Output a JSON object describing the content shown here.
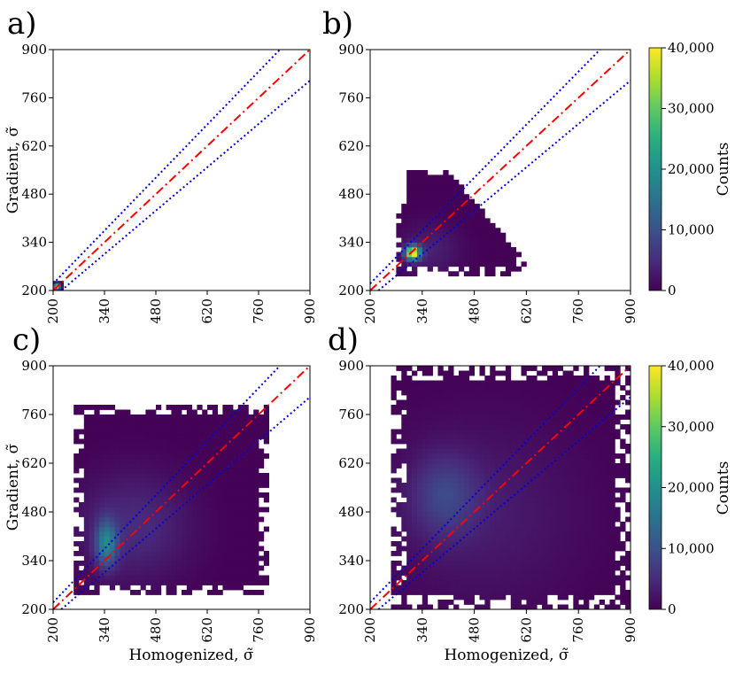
{
  "chart_data": [
    {
      "id": "a",
      "panel_label": "a)",
      "type": "heatmap",
      "title": "",
      "xlabel": "",
      "ylabel": "Gradient, σ̃",
      "xlim": [
        200,
        900
      ],
      "ylim": [
        200,
        900
      ],
      "xticks": [
        "200",
        "340",
        "480",
        "620",
        "760",
        "900"
      ],
      "yticks": [
        "200",
        "340",
        "480",
        "620",
        "760",
        "900"
      ],
      "blobs": [
        {
          "x": 210,
          "y": 212,
          "sx": 6,
          "sy": 6,
          "peak": 40000
        }
      ],
      "region": {
        "x_min": 200,
        "x_max": 225,
        "y_min": 200,
        "y_max": 228
      },
      "reference_lines": [
        {
          "name": "identity",
          "slope": 1.0,
          "style": "dashdot",
          "color": "#ff0000"
        },
        {
          "name": "upper bound",
          "slope": 1.1,
          "style": "dotted",
          "color": "#0000dd"
        },
        {
          "name": "lower bound",
          "slope": 0.9,
          "style": "dotted",
          "color": "#0000dd"
        }
      ]
    },
    {
      "id": "b",
      "panel_label": "b)",
      "type": "heatmap",
      "title": "",
      "xlabel": "",
      "ylabel": "",
      "xlim": [
        200,
        900
      ],
      "ylim": [
        200,
        900
      ],
      "xticks": [
        "200",
        "340",
        "480",
        "620",
        "760",
        "900"
      ],
      "yticks": [
        "200",
        "340",
        "480",
        "620",
        "760",
        "900"
      ],
      "blobs": [
        {
          "x": 315,
          "y": 310,
          "sx": 14,
          "sy": 14,
          "peak": 40000
        },
        {
          "x": 360,
          "y": 320,
          "sx": 60,
          "sy": 55,
          "peak": 3500
        }
      ],
      "region": {
        "x_min": 265,
        "x_max": 620,
        "y_min": 245,
        "y_max": 555
      },
      "reference_lines": [
        {
          "name": "identity",
          "slope": 1.0,
          "style": "dashdot",
          "color": "#ff0000"
        },
        {
          "name": "upper bound",
          "slope": 1.1,
          "style": "dotted",
          "color": "#0000dd"
        },
        {
          "name": "lower bound",
          "slope": 0.9,
          "style": "dotted",
          "color": "#0000dd"
        }
      ]
    },
    {
      "id": "c",
      "panel_label": "c)",
      "type": "heatmap",
      "title": "",
      "xlabel": "Homogenized, σ̃",
      "ylabel": "Gradient, σ̃",
      "xlim": [
        200,
        900
      ],
      "ylim": [
        200,
        900
      ],
      "xticks": [
        "200",
        "340",
        "480",
        "620",
        "760",
        "900"
      ],
      "yticks": [
        "200",
        "340",
        "480",
        "620",
        "760",
        "900"
      ],
      "blobs": [
        {
          "x": 345,
          "y": 390,
          "sx": 20,
          "sy": 45,
          "peak": 16000
        },
        {
          "x": 420,
          "y": 440,
          "sx": 110,
          "sy": 110,
          "peak": 5000
        }
      ],
      "region": {
        "x_min": 258,
        "x_max": 790,
        "y_min": 240,
        "y_max": 790
      },
      "reference_lines": [
        {
          "name": "identity",
          "slope": 1.0,
          "style": "dashdot",
          "color": "#ff0000"
        },
        {
          "name": "upper bound",
          "slope": 1.1,
          "style": "dotted",
          "color": "#0000dd"
        },
        {
          "name": "lower bound",
          "slope": 0.9,
          "style": "dotted",
          "color": "#0000dd"
        }
      ]
    },
    {
      "id": "d",
      "panel_label": "d)",
      "type": "heatmap",
      "title": "",
      "xlabel": "Homogenized, σ̃",
      "ylabel": "",
      "xlim": [
        200,
        900
      ],
      "ylim": [
        200,
        900
      ],
      "xticks": [
        "200",
        "340",
        "480",
        "620",
        "760",
        "900"
      ],
      "yticks": [
        "200",
        "340",
        "480",
        "620",
        "760",
        "900"
      ],
      "blobs": [
        {
          "x": 400,
          "y": 530,
          "sx": 60,
          "sy": 80,
          "peak": 6500
        },
        {
          "x": 500,
          "y": 480,
          "sx": 190,
          "sy": 190,
          "peak": 3000
        }
      ],
      "region": {
        "x_min": 255,
        "x_max": 895,
        "y_min": 205,
        "y_max": 900
      },
      "reference_lines": [
        {
          "name": "identity",
          "slope": 1.0,
          "style": "dashdot",
          "color": "#ff0000"
        },
        {
          "name": "upper bound",
          "slope": 1.1,
          "style": "dotted",
          "color": "#0000dd"
        },
        {
          "name": "lower bound",
          "slope": 0.9,
          "style": "dotted",
          "color": "#0000dd"
        }
      ]
    }
  ],
  "colorbar": {
    "label": "Counts",
    "colormap": "viridis",
    "range": [
      0,
      40000
    ],
    "ticks": [
      "0",
      "10,000",
      "20,000",
      "30,000",
      "40,000"
    ],
    "count": 2
  }
}
